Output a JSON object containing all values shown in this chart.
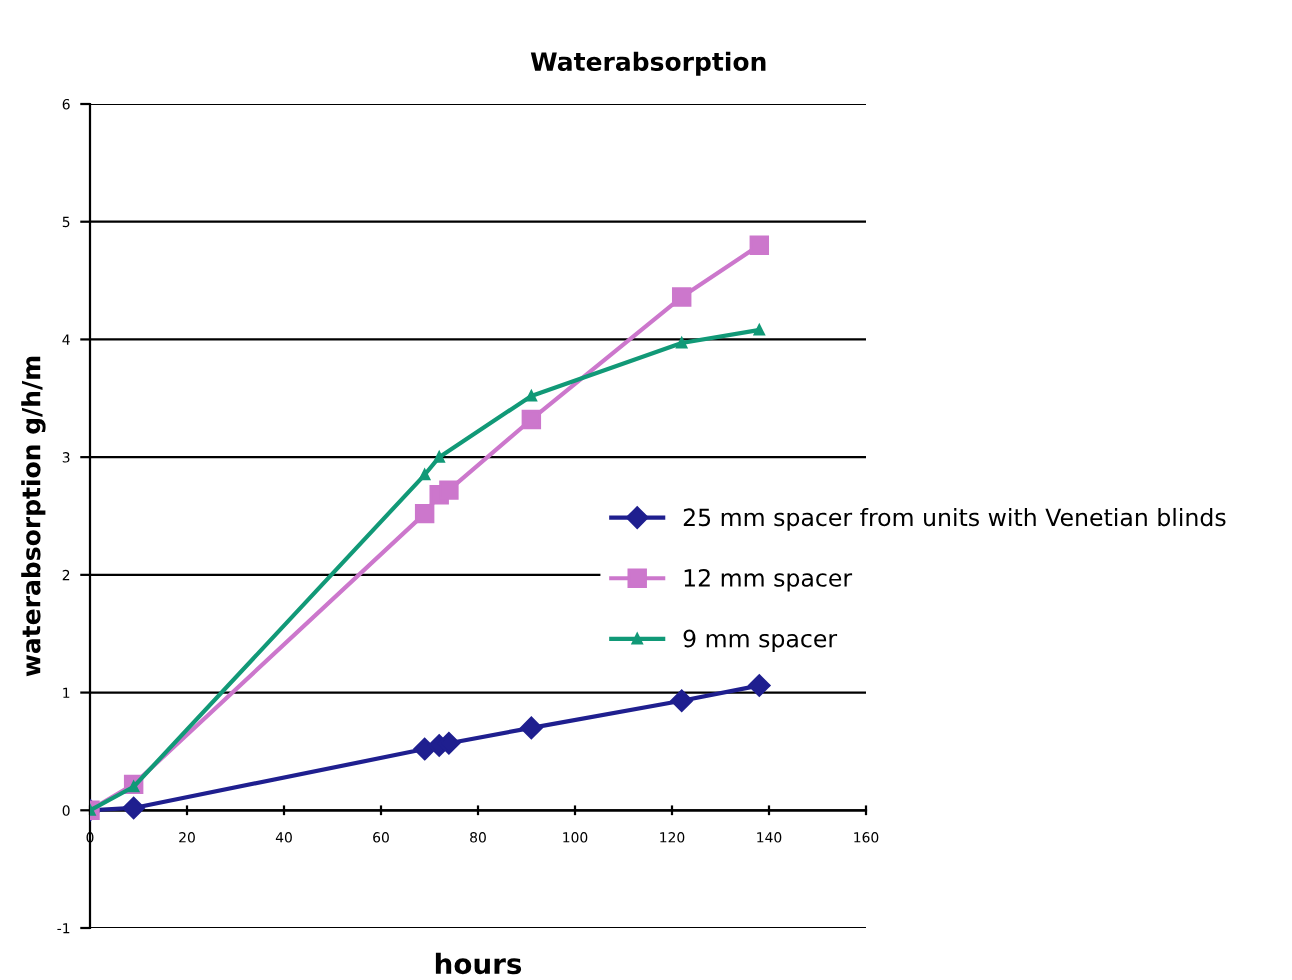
{
  "chart_data": {
    "type": "line",
    "title": "Waterabsorption",
    "xlabel": "hours",
    "ylabel": "waterabsorption g/h/m",
    "xlim": [
      0,
      160
    ],
    "xticks": [
      0,
      20,
      40,
      60,
      80,
      100,
      120,
      140,
      160
    ],
    "ylim": [
      -1,
      6
    ],
    "yticks": [
      -1,
      0,
      1,
      2,
      3,
      4,
      5,
      6
    ],
    "grid": "y",
    "legend": "right",
    "series": [
      {
        "name": "25 mm spacer from units with Venetian blinds",
        "color": "#1f1f8f",
        "marker": "diamond",
        "x": [
          0,
          9,
          69,
          72,
          74,
          91,
          122,
          138
        ],
        "values": [
          0,
          0.02,
          0.52,
          0.55,
          0.57,
          0.7,
          0.93,
          1.06
        ]
      },
      {
        "name": "12 mm spacer",
        "color": "#cc77cc",
        "marker": "square",
        "x": [
          0,
          9,
          69,
          72,
          74,
          91,
          122,
          138
        ],
        "values": [
          0,
          0.22,
          2.52,
          2.68,
          2.72,
          3.32,
          4.36,
          4.8
        ]
      },
      {
        "name": "9 mm spacer",
        "color": "#119977",
        "marker": "triangle",
        "x": [
          0,
          9,
          69,
          72,
          91,
          122,
          138
        ],
        "values": [
          0,
          0.2,
          2.85,
          3.0,
          3.52,
          3.97,
          4.08
        ]
      }
    ]
  }
}
